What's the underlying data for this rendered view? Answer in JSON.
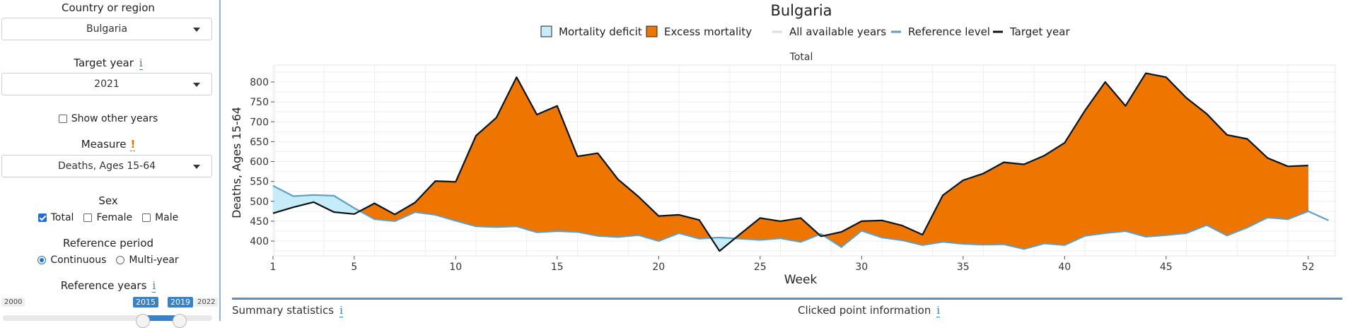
{
  "sidebar": {
    "country_label": "Country or region",
    "country_value": "Bulgaria",
    "target_year_label": "Target year",
    "target_year_value": "2021",
    "show_other_years_label": "Show other years",
    "measure_label": "Measure",
    "measure_value": "Deaths, Ages 15-64",
    "sex_label": "Sex",
    "sex_options": [
      "Total",
      "Female",
      "Male"
    ],
    "reference_period_label": "Reference period",
    "reference_period_options": [
      "Continuous",
      "Multi-year"
    ],
    "reference_years_label": "Reference years",
    "slider_min": "2000",
    "slider_max": "2022",
    "slider_from": "2015",
    "slider_to": "2019",
    "info_glyph": "i",
    "warn_glyph": "!"
  },
  "bottom": {
    "summary_label": "Summary statistics",
    "clicked_label": "Clicked point information",
    "info_glyph": "i"
  },
  "colors": {
    "excess": "#ee7600",
    "deficit": "#c5ecf8",
    "reference_line": "#5f9ec7",
    "target_line": "#111111",
    "all_years": "#dddddd"
  },
  "chart_data": {
    "type": "area",
    "title": "Bulgaria",
    "facet_label": "Total",
    "xlabel": "Week",
    "ylabel": "Deaths, Ages 15-64",
    "xlim": [
      1,
      53
    ],
    "ylim": [
      370,
      830
    ],
    "xticks": [
      1,
      5,
      10,
      15,
      20,
      25,
      30,
      35,
      40,
      45,
      52
    ],
    "yticks": [
      400,
      450,
      500,
      550,
      600,
      650,
      700,
      750,
      800
    ],
    "grid": true,
    "legend_position": "top",
    "legend": [
      "Mortality deficit",
      "Excess mortality",
      "All available years",
      "Reference level",
      "Target year"
    ],
    "series": [
      {
        "name": "Target year",
        "x": [
          1,
          2,
          3,
          4,
          5,
          6,
          7,
          8,
          9,
          10,
          11,
          12,
          13,
          14,
          15,
          16,
          17,
          18,
          19,
          20,
          21,
          22,
          23,
          24,
          25,
          26,
          27,
          28,
          29,
          30,
          31,
          32,
          33,
          34,
          35,
          36,
          37,
          38,
          39,
          40,
          41,
          42,
          43,
          44,
          45,
          46,
          47,
          48,
          49,
          50,
          51,
          52
        ],
        "values": [
          470,
          485,
          498,
          473,
          468,
          495,
          467,
          497,
          551,
          549,
          665,
          710,
          812,
          718,
          740,
          613,
          621,
          555,
          512,
          463,
          466,
          453,
          375,
          417,
          458,
          450,
          458,
          412,
          423,
          450,
          452,
          439,
          416,
          515,
          553,
          570,
          598,
          593,
          615,
          647,
          728,
          800,
          740,
          822,
          812,
          760,
          720,
          667,
          657,
          609,
          588,
          590
        ]
      },
      {
        "name": "Reference level",
        "x": [
          1,
          2,
          3,
          4,
          5,
          6,
          7,
          8,
          9,
          10,
          11,
          12,
          13,
          14,
          15,
          16,
          17,
          18,
          19,
          20,
          21,
          22,
          23,
          24,
          25,
          26,
          27,
          28,
          29,
          30,
          31,
          32,
          33,
          34,
          35,
          36,
          37,
          38,
          39,
          40,
          41,
          42,
          43,
          44,
          45,
          46,
          47,
          48,
          49,
          50,
          51,
          52,
          53
        ],
        "values": [
          539,
          513,
          516,
          514,
          483,
          455,
          450,
          473,
          466,
          451,
          437,
          435,
          437,
          422,
          425,
          423,
          413,
          410,
          415,
          400,
          420,
          406,
          409,
          406,
          403,
          407,
          398,
          418,
          385,
          426,
          409,
          402,
          390,
          398,
          393,
          391,
          392,
          380,
          394,
          390,
          413,
          420,
          425,
          411,
          415,
          420,
          440,
          414,
          434,
          459,
          455,
          475,
          452
        ]
      }
    ]
  }
}
